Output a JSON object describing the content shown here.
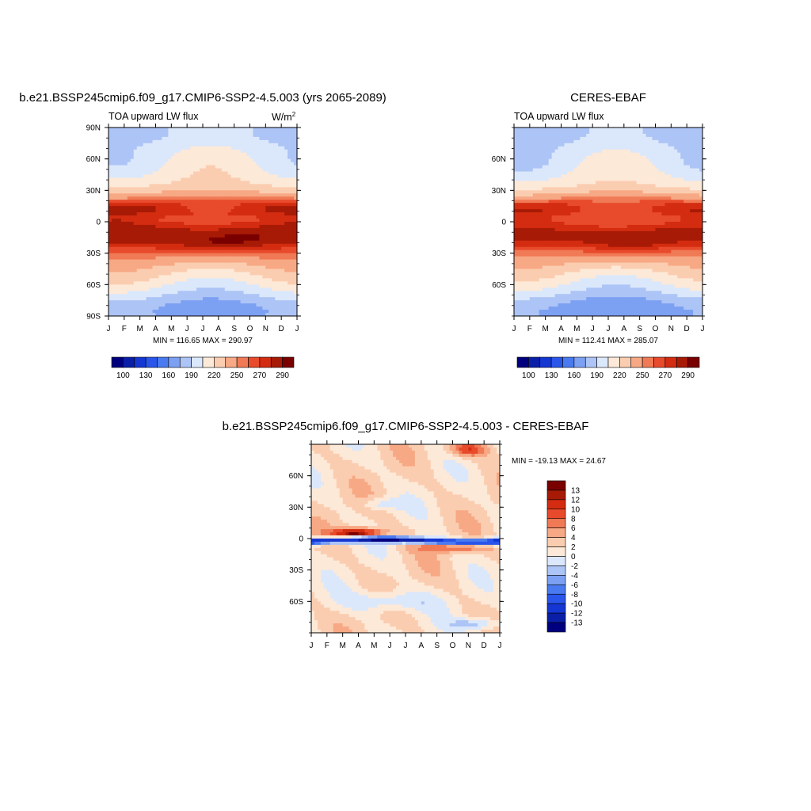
{
  "chart_data": [
    {
      "type": "heatmap",
      "title": "b.e21.BSSP245cmip6.f09_g17.CMIP6-SSP2-4.5.003 (yrs 2065-2089)",
      "subtitle": "TOA upward LW flux",
      "units_base": "W/m",
      "units_sup": "2",
      "x_tick_labels": [
        "J",
        "F",
        "M",
        "A",
        "M",
        "J",
        "J",
        "A",
        "S",
        "O",
        "N",
        "D",
        "J"
      ],
      "y_tick_labels": [
        "90N",
        "60N",
        "30N",
        "0",
        "30S",
        "60S",
        "90S"
      ],
      "stats": "MIN = 116.65 MAX = 290.97",
      "min": 116.65,
      "max": 290.97,
      "colorbar_labels": [
        "100",
        "130",
        "160",
        "190",
        "220",
        "250",
        "270",
        "290"
      ],
      "colorbar_levels": [
        100,
        115,
        130,
        145,
        160,
        175,
        190,
        205,
        220,
        235,
        250,
        260,
        270,
        280,
        290
      ]
    },
    {
      "type": "heatmap",
      "title": "CERES-EBAF",
      "subtitle": "TOA upward LW flux",
      "x_tick_labels": [
        "J",
        "F",
        "M",
        "A",
        "M",
        "J",
        "J",
        "A",
        "S",
        "O",
        "N",
        "D",
        "J"
      ],
      "y_tick_labels": [
        "60N",
        "30N",
        "0",
        "30S",
        "60S"
      ],
      "stats": "MIN = 112.41 MAX = 285.07",
      "min": 112.41,
      "max": 285.07,
      "colorbar_labels": [
        "100",
        "130",
        "160",
        "190",
        "220",
        "250",
        "270",
        "290"
      ],
      "colorbar_levels": [
        100,
        115,
        130,
        145,
        160,
        175,
        190,
        205,
        220,
        235,
        250,
        260,
        270,
        280,
        290
      ]
    },
    {
      "type": "heatmap",
      "title": "b.e21.BSSP245cmip6.f09_g17.CMIP6-SSP2-4.5.003 - CERES-EBAF",
      "x_tick_labels": [
        "J",
        "F",
        "M",
        "A",
        "M",
        "J",
        "J",
        "A",
        "S",
        "O",
        "N",
        "D",
        "J"
      ],
      "y_tick_labels": [
        "60N",
        "30N",
        "0",
        "30S",
        "60S"
      ],
      "stats": "MIN = -19.13 MAX =  24.67",
      "min": -19.13,
      "max": 24.67,
      "colorbar_labels": [
        "13",
        "12",
        "10",
        "8",
        "6",
        "4",
        "2",
        "0",
        "-2",
        "-4",
        "-6",
        "-8",
        "-10",
        "-12",
        "-13"
      ],
      "colorbar_levels": [
        -13,
        -12,
        -10,
        -8,
        -6,
        -4,
        -2,
        0,
        2,
        4,
        6,
        8,
        10,
        12,
        13
      ]
    }
  ],
  "colors": {
    "flux_palette": [
      "#00007f",
      "#0a1fa8",
      "#1437d4",
      "#2a55eb",
      "#4a7af0",
      "#7ca0f2",
      "#adc4f6",
      "#dbe8fb",
      "#fde9d8",
      "#fbcdb0",
      "#f7a884",
      "#f07a55",
      "#e84a2c",
      "#d42c10",
      "#a71a06",
      "#7a0000"
    ],
    "diff_palette": [
      "#00007f",
      "#0a1fa8",
      "#1437d4",
      "#2a55eb",
      "#4a7af0",
      "#7ca0f2",
      "#adc4f6",
      "#dbe8fb",
      "#fde9d8",
      "#fbcdb0",
      "#f7a884",
      "#f07a55",
      "#e84a2c",
      "#d42c10",
      "#a71a06",
      "#7a0000"
    ]
  }
}
